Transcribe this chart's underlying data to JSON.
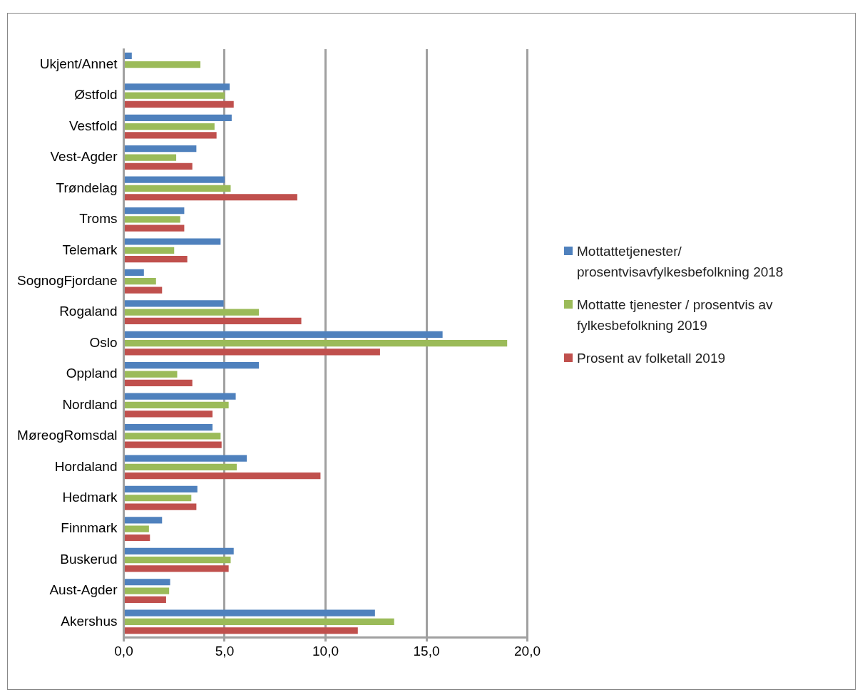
{
  "chart_data": {
    "type": "bar",
    "orientation": "horizontal",
    "categories": [
      "Ukjent/Annet",
      "Østfold",
      "Vestfold",
      "Vest-Agder",
      "Trøndelag",
      "Troms",
      "Telemark",
      "SognogFjordane",
      "Rogaland",
      "Oslo",
      "Oppland",
      "Nordland",
      "MøreogRomsdal",
      "Hordaland",
      "Hedmark",
      "Finnmark",
      "Buskerud",
      "Aust-Agder",
      "Akershus"
    ],
    "series": [
      {
        "name": "Mottattetjenester/ prosentvisavfylkesbefolkning 2018",
        "color": "#4f81bd",
        "values": [
          0.4,
          5.25,
          5.35,
          3.6,
          5.0,
          3.0,
          4.8,
          1.0,
          4.95,
          15.8,
          6.7,
          5.55,
          4.4,
          6.1,
          3.65,
          1.9,
          5.45,
          2.3,
          12.45
        ]
      },
      {
        "name": "Mottatte tjenester / prosentvis av fylkesbefolkning 2019",
        "color": "#9bbb59",
        "values": [
          3.8,
          5.0,
          4.5,
          2.6,
          5.3,
          2.8,
          2.5,
          1.6,
          6.7,
          19.0,
          2.65,
          5.2,
          4.8,
          5.6,
          3.35,
          1.25,
          5.3,
          2.25,
          13.4
        ]
      },
      {
        "name": "Prosent av folketall 2019",
        "color": "#c0504d",
        "values": [
          null,
          5.45,
          4.6,
          3.4,
          8.6,
          3.0,
          3.15,
          1.9,
          8.8,
          12.7,
          3.4,
          4.4,
          4.85,
          9.75,
          3.6,
          1.3,
          5.2,
          2.1,
          11.6
        ]
      }
    ],
    "xlim": [
      0,
      20
    ],
    "xticks": [
      {
        "value": 0,
        "label": "0,0"
      },
      {
        "value": 5,
        "label": "5,0"
      },
      {
        "value": 10,
        "label": "10,0"
      },
      {
        "value": 15,
        "label": "15,0"
      },
      {
        "value": 20,
        "label": "20,0"
      }
    ],
    "grid": "x",
    "legend": "right"
  }
}
